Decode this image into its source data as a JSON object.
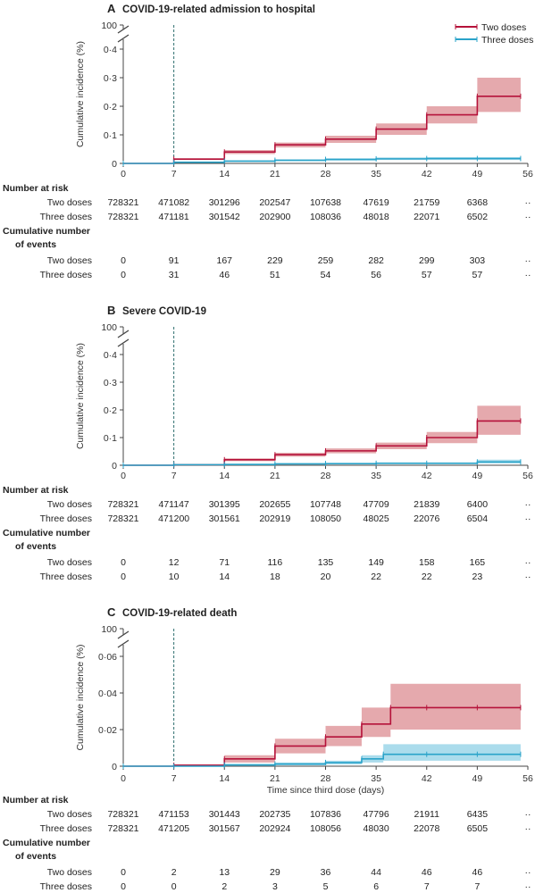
{
  "series_styles": {
    "two_doses": {
      "name": "Two doses",
      "color": "#b5123a",
      "band": "#dc8c92"
    },
    "three_doses": {
      "name": "Three doses",
      "color": "#2aa3c9",
      "band": "#8fd0e6"
    }
  },
  "chart_data": [
    {
      "type": "line",
      "panel": "A",
      "title": "COVID-19-related admission to hospital",
      "ylabel": "Cumulative incidence (%)",
      "xlabel": "",
      "xlim": [
        0,
        56
      ],
      "x_ticks": [
        "0",
        "7",
        "14",
        "21",
        "28",
        "35",
        "42",
        "49",
        "56"
      ],
      "ylim": [
        0,
        0.4
      ],
      "y_ticks": [
        "0",
        "0·1",
        "0·2",
        "0·3",
        "0·4"
      ],
      "y_break_label": "100",
      "legend": {
        "position": "top-right",
        "entries": [
          "Two doses",
          "Three doses"
        ]
      },
      "vertical_line_x": 7,
      "series": [
        {
          "name": "Two doses",
          "x": [
            0,
            7,
            14,
            21,
            28,
            35,
            42,
            49,
            55
          ],
          "values": [
            0,
            0.015,
            0.04,
            0.065,
            0.085,
            0.12,
            0.17,
            0.235,
            0.235
          ],
          "lower": [
            0,
            0.012,
            0.033,
            0.056,
            0.072,
            0.1,
            0.14,
            0.18,
            0.18
          ],
          "upper": [
            0,
            0.018,
            0.047,
            0.073,
            0.097,
            0.14,
            0.2,
            0.3,
            0.3
          ]
        },
        {
          "name": "Three doses",
          "x": [
            0,
            7,
            14,
            21,
            28,
            35,
            42,
            49,
            55
          ],
          "values": [
            0,
            0.004,
            0.008,
            0.011,
            0.014,
            0.016,
            0.017,
            0.017,
            0.017
          ],
          "lower": [
            0,
            0.002,
            0.005,
            0.008,
            0.01,
            0.012,
            0.012,
            0.012,
            0.012
          ],
          "upper": [
            0,
            0.006,
            0.011,
            0.014,
            0.018,
            0.021,
            0.022,
            0.022,
            0.022
          ]
        }
      ],
      "table": {
        "at_risk_label": "Number at risk",
        "events_label": [
          "Cumulative number",
          "of events"
        ],
        "at_risk": [
          {
            "label": "Two doses",
            "values": [
              "728321",
              "471082",
              "301296",
              "202547",
              "107638",
              "47619",
              "21759",
              "6368",
              "··"
            ]
          },
          {
            "label": "Three doses",
            "values": [
              "728321",
              "471181",
              "301542",
              "202900",
              "108036",
              "48018",
              "22071",
              "6502",
              "··"
            ]
          }
        ],
        "events": [
          {
            "label": "Two doses",
            "values": [
              "0",
              "91",
              "167",
              "229",
              "259",
              "282",
              "299",
              "303",
              "··"
            ]
          },
          {
            "label": "Three doses",
            "values": [
              "0",
              "31",
              "46",
              "51",
              "54",
              "56",
              "57",
              "57",
              "··"
            ]
          }
        ]
      }
    },
    {
      "type": "line",
      "panel": "B",
      "title": "Severe COVID-19",
      "ylabel": "Cumulative incidence (%)",
      "xlabel": "",
      "xlim": [
        0,
        56
      ],
      "x_ticks": [
        "0",
        "7",
        "14",
        "21",
        "28",
        "35",
        "42",
        "49",
        "56"
      ],
      "ylim": [
        0,
        0.4
      ],
      "y_ticks": [
        "0",
        "0·1",
        "0·2",
        "0·3",
        "0·4"
      ],
      "y_break_label": "100",
      "vertical_line_x": 7,
      "series": [
        {
          "name": "Two doses",
          "x": [
            0,
            7,
            14,
            21,
            28,
            35,
            42,
            49,
            55
          ],
          "values": [
            0,
            0.002,
            0.02,
            0.038,
            0.052,
            0.07,
            0.1,
            0.16,
            0.16
          ],
          "lower": [
            0,
            0.001,
            0.015,
            0.031,
            0.043,
            0.058,
            0.08,
            0.11,
            0.11
          ],
          "upper": [
            0,
            0.003,
            0.025,
            0.045,
            0.061,
            0.082,
            0.12,
            0.215,
            0.215
          ]
        },
        {
          "name": "Three doses",
          "x": [
            0,
            7,
            14,
            21,
            28,
            35,
            42,
            49,
            55
          ],
          "values": [
            0,
            0.002,
            0.003,
            0.005,
            0.006,
            0.007,
            0.007,
            0.012,
            0.012
          ],
          "lower": [
            0,
            0.001,
            0.001,
            0.003,
            0.004,
            0.005,
            0.005,
            0.007,
            0.007
          ],
          "upper": [
            0,
            0.003,
            0.005,
            0.007,
            0.008,
            0.01,
            0.01,
            0.02,
            0.02
          ]
        }
      ],
      "table": {
        "at_risk_label": "Number at risk",
        "events_label": [
          "Cumulative number",
          "of events"
        ],
        "at_risk": [
          {
            "label": "Two doses",
            "values": [
              "728321",
              "471147",
              "301395",
              "202655",
              "107748",
              "47709",
              "21839",
              "6400",
              "··"
            ]
          },
          {
            "label": "Three doses",
            "values": [
              "728321",
              "471200",
              "301561",
              "202919",
              "108050",
              "48025",
              "22076",
              "6504",
              "··"
            ]
          }
        ],
        "events": [
          {
            "label": "Two doses",
            "values": [
              "0",
              "12",
              "71",
              "116",
              "135",
              "149",
              "158",
              "165",
              "··"
            ]
          },
          {
            "label": "Three doses",
            "values": [
              "0",
              "10",
              "14",
              "18",
              "20",
              "22",
              "22",
              "23",
              "··"
            ]
          }
        ]
      }
    },
    {
      "type": "line",
      "panel": "C",
      "title": "COVID-19-related death",
      "ylabel": "Cumulative incidence (%)",
      "xlabel": "Time since third dose (days)",
      "xlim": [
        0,
        56
      ],
      "x_ticks": [
        "0",
        "7",
        "14",
        "21",
        "28",
        "35",
        "42",
        "49",
        "56"
      ],
      "ylim": [
        0,
        0.06
      ],
      "y_ticks": [
        "0",
        "0·02",
        "0·04",
        "0·06"
      ],
      "y_break_label": "100",
      "vertical_line_x": 7,
      "series": [
        {
          "name": "Two doses",
          "x": [
            0,
            7,
            14,
            21,
            28,
            33,
            37,
            42,
            49,
            55
          ],
          "values": [
            0,
            0.0005,
            0.004,
            0.011,
            0.016,
            0.023,
            0.032,
            0.032,
            0.032,
            0.032
          ],
          "lower": [
            0,
            0.0002,
            0.002,
            0.007,
            0.011,
            0.016,
            0.02,
            0.02,
            0.02,
            0.02
          ],
          "upper": [
            0,
            0.001,
            0.006,
            0.015,
            0.022,
            0.032,
            0.045,
            0.045,
            0.045,
            0.045
          ]
        },
        {
          "name": "Three doses",
          "x": [
            0,
            7,
            14,
            21,
            28,
            33,
            36,
            42,
            49,
            55
          ],
          "values": [
            0,
            0,
            0.0007,
            0.0012,
            0.002,
            0.004,
            0.0065,
            0.0065,
            0.0065,
            0.0065
          ],
          "lower": [
            0,
            0,
            0.0002,
            0.0005,
            0.001,
            0.002,
            0.003,
            0.003,
            0.003,
            0.003
          ],
          "upper": [
            0,
            0,
            0.0012,
            0.002,
            0.003,
            0.006,
            0.012,
            0.012,
            0.012,
            0.012
          ]
        }
      ],
      "table": {
        "at_risk_label": "Number at risk",
        "events_label": [
          "Cumulative number",
          "of events"
        ],
        "at_risk": [
          {
            "label": "Two doses",
            "values": [
              "728321",
              "471153",
              "301443",
              "202735",
              "107836",
              "47796",
              "21911",
              "6435",
              "··"
            ]
          },
          {
            "label": "Three doses",
            "values": [
              "728321",
              "471205",
              "301567",
              "202924",
              "108056",
              "48030",
              "22078",
              "6505",
              "··"
            ]
          }
        ],
        "events": [
          {
            "label": "Two doses",
            "values": [
              "0",
              "2",
              "13",
              "29",
              "36",
              "44",
              "46",
              "46",
              "··"
            ]
          },
          {
            "label": "Three doses",
            "values": [
              "0",
              "0",
              "2",
              "3",
              "5",
              "6",
              "7",
              "7",
              "··"
            ]
          }
        ]
      }
    }
  ]
}
